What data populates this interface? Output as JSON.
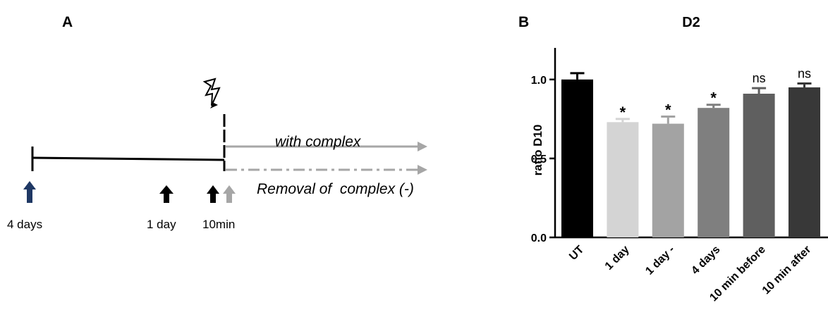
{
  "panel_a": {
    "letter": "A",
    "timepoints": [
      "4 days",
      "1 day",
      "10min"
    ],
    "with_label": "with complex",
    "removal_label": "Removal of  complex (-)",
    "colors": {
      "line": "#000000",
      "grey_arrow": "#a6a6a6",
      "first_arrow": "#1f3864",
      "bolt": "#000000"
    },
    "icons": [
      "lightning-bolt-icon",
      "arrow-up-icon"
    ]
  },
  "panel_b": {
    "letter": "B"
  },
  "chart_data": {
    "type": "bar",
    "title": "D2",
    "xlabel": "",
    "ylabel": "ratio D10",
    "ylim": [
      0,
      1.2
    ],
    "yticks": [
      "0.0",
      "0.5",
      "1.0"
    ],
    "ytick_values": [
      0.0,
      0.5,
      1.0
    ],
    "categories": [
      "UT",
      "1 day",
      "1 day -",
      "4 days",
      "10 min before",
      "10 min after"
    ],
    "values": [
      1.0,
      0.73,
      0.72,
      0.82,
      0.91,
      0.95
    ],
    "errors": [
      0.04,
      0.02,
      0.045,
      0.02,
      0.035,
      0.025
    ],
    "annotations": [
      "",
      "*",
      "*",
      "*",
      "ns",
      "ns"
    ],
    "colors": [
      "#000000",
      "#d4d4d4",
      "#a3a3a3",
      "#7f7f7f",
      "#5f5f5f",
      "#383838"
    ]
  }
}
